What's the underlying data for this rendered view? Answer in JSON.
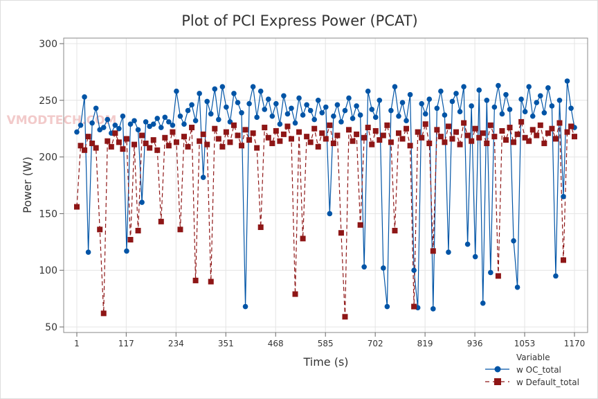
{
  "watermark": "VMODTECH.COM",
  "chart_data": {
    "type": "line",
    "title": "Plot of PCI Express Power (PCAT)",
    "xlabel": "Time (s)",
    "ylabel": "Power (W)",
    "xlim": [
      1,
      1170
    ],
    "ylim": [
      50,
      300
    ],
    "xticks": [
      1,
      117,
      234,
      351,
      468,
      585,
      702,
      819,
      936,
      1053,
      1170
    ],
    "yticks": [
      50,
      100,
      150,
      200,
      250,
      300
    ],
    "grid": true,
    "legend": {
      "title": "Variable",
      "placement": "bottom-right"
    },
    "x": [
      1,
      10,
      19,
      28,
      37,
      46,
      55,
      64,
      73,
      82,
      91,
      100,
      109,
      118,
      127,
      136,
      145,
      154,
      163,
      172,
      181,
      190,
      199,
      208,
      217,
      226,
      235,
      244,
      253,
      262,
      271,
      280,
      289,
      298,
      307,
      316,
      325,
      334,
      343,
      352,
      361,
      370,
      379,
      388,
      397,
      406,
      415,
      424,
      433,
      442,
      451,
      460,
      469,
      478,
      487,
      496,
      505,
      514,
      523,
      532,
      541,
      550,
      559,
      568,
      577,
      586,
      595,
      604,
      613,
      622,
      631,
      640,
      649,
      658,
      667,
      676,
      685,
      694,
      703,
      712,
      721,
      730,
      739,
      748,
      757,
      766,
      775,
      784,
      793,
      802,
      811,
      820,
      829,
      838,
      847,
      856,
      865,
      874,
      883,
      892,
      901,
      910,
      919,
      928,
      937,
      946,
      955,
      964,
      973,
      982,
      991,
      1000,
      1009,
      1018,
      1027,
      1036,
      1045,
      1054,
      1063,
      1072,
      1081,
      1090,
      1099,
      1108,
      1117,
      1126,
      1135,
      1144,
      1153,
      1162,
      1170
    ],
    "series": [
      {
        "name": "w OC_total",
        "color": "#0054A6",
        "line": "solid",
        "marker": "circle",
        "values": [
          222,
          228,
          253,
          116,
          230,
          243,
          224,
          226,
          233,
          221,
          228,
          225,
          236,
          117,
          229,
          232,
          224,
          160,
          231,
          227,
          229,
          234,
          226,
          235,
          231,
          228,
          258,
          236,
          229,
          241,
          246,
          232,
          256,
          182,
          249,
          238,
          260,
          233,
          262,
          244,
          231,
          256,
          248,
          239,
          68,
          247,
          262,
          235,
          258,
          242,
          251,
          236,
          247,
          229,
          254,
          238,
          243,
          230,
          252,
          237,
          246,
          241,
          233,
          250,
          239,
          244,
          150,
          236,
          246,
          231,
          241,
          252,
          234,
          245,
          237,
          103,
          258,
          242,
          235,
          250,
          102,
          68,
          241,
          262,
          236,
          248,
          232,
          255,
          100,
          67,
          247,
          238,
          251,
          66,
          243,
          258,
          237,
          116,
          249,
          256,
          240,
          262,
          123,
          245,
          112,
          259,
          71,
          250,
          98,
          244,
          263,
          238,
          255,
          242,
          126,
          85,
          251,
          240,
          262,
          236,
          248,
          254,
          239,
          261,
          245,
          95,
          250,
          165,
          267,
          243,
          226
        ]
      },
      {
        "name": "w Default_total",
        "color": "#8E1616",
        "line": "dashed",
        "marker": "square",
        "values": [
          156,
          210,
          206,
          218,
          212,
          208,
          136,
          62,
          214,
          209,
          221,
          213,
          207,
          216,
          127,
          211,
          135,
          219,
          212,
          208,
          215,
          206,
          143,
          217,
          210,
          222,
          213,
          136,
          218,
          209,
          226,
          91,
          214,
          220,
          211,
          90,
          225,
          216,
          209,
          222,
          213,
          228,
          219,
          210,
          224,
          215,
          221,
          208,
          138,
          226,
          217,
          212,
          223,
          214,
          220,
          227,
          216,
          79,
          222,
          128,
          218,
          213,
          225,
          209,
          221,
          216,
          228,
          212,
          219,
          133,
          59,
          224,
          214,
          220,
          140,
          217,
          226,
          211,
          223,
          215,
          219,
          228,
          213,
          135,
          221,
          216,
          225,
          210,
          68,
          222,
          217,
          229,
          212,
          117,
          224,
          218,
          213,
          227,
          216,
          222,
          211,
          230,
          219,
          214,
          225,
          217,
          221,
          212,
          228,
          218,
          95,
          223,
          215,
          226,
          213,
          220,
          231,
          217,
          214,
          224,
          219,
          228,
          212,
          221,
          225,
          216,
          230,
          109,
          222,
          227,
          218
        ]
      }
    ]
  }
}
